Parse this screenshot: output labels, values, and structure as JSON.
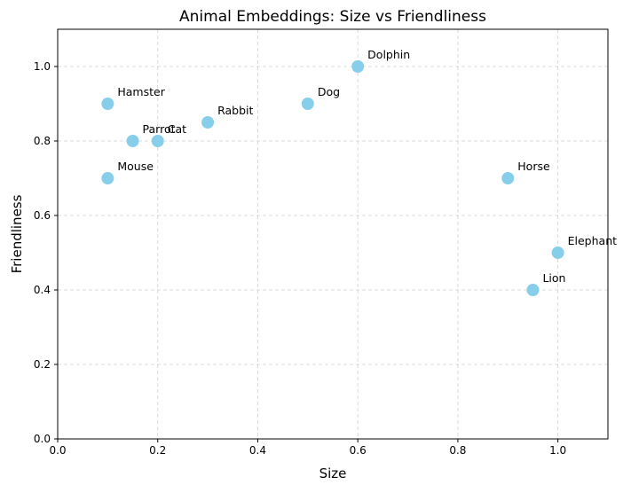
{
  "chart_data": {
    "type": "scatter",
    "title": "Animal Embeddings: Size vs Friendliness",
    "xlabel": "Size",
    "ylabel": "Friendliness",
    "xlim": [
      0,
      1.1
    ],
    "ylim": [
      0,
      1.1
    ],
    "xticks": [
      "0.0",
      "0.2",
      "0.4",
      "0.6",
      "0.8",
      "1.0"
    ],
    "yticks": [
      "0.0",
      "0.2",
      "0.4",
      "0.6",
      "0.8",
      "1.0"
    ],
    "grid": true,
    "marker_color": "#87ceeb",
    "points": [
      {
        "label": "Dog",
        "x": 0.5,
        "y": 0.9
      },
      {
        "label": "Cat",
        "x": 0.2,
        "y": 0.8
      },
      {
        "label": "Elephant",
        "x": 1.0,
        "y": 0.5
      },
      {
        "label": "Mouse",
        "x": 0.1,
        "y": 0.7
      },
      {
        "label": "Lion",
        "x": 0.95,
        "y": 0.4
      },
      {
        "label": "Dolphin",
        "x": 0.6,
        "y": 1.0
      },
      {
        "label": "Horse",
        "x": 0.9,
        "y": 0.7
      },
      {
        "label": "Rabbit",
        "x": 0.3,
        "y": 0.85
      },
      {
        "label": "Parrot",
        "x": 0.15,
        "y": 0.8
      },
      {
        "label": "Hamster",
        "x": 0.1,
        "y": 0.9
      }
    ]
  }
}
